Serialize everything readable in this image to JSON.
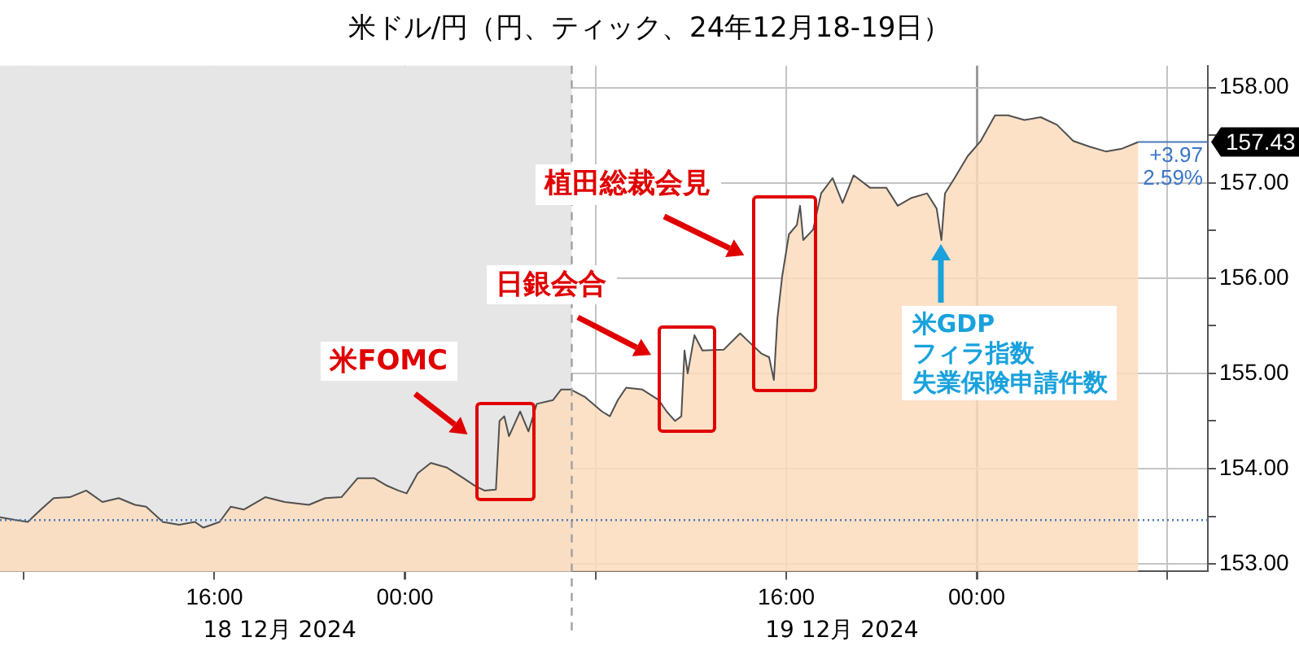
{
  "chart_data": {
    "type": "area",
    "title": "米ドル/円（円、ティック、24年12月18-19日）",
    "series": [
      {
        "color": "#fbdcbd",
        "x": [
          "2024-12-18T07:00",
          "2024-12-18T07:41",
          "2024-12-18T08:10",
          "2024-12-18T08:43",
          "2024-12-18T09:15",
          "2024-12-18T09:56",
          "2024-12-18T10:37",
          "2024-12-18T11:18",
          "2024-12-18T11:59",
          "2024-12-18T12:40",
          "2024-12-18T13:08",
          "2024-12-18T13:50",
          "2024-12-18T14:31",
          "2024-12-18T15:11",
          "2024-12-18T15:32",
          "2024-12-18T16:13",
          "2024-12-18T16:41",
          "2024-12-18T17:14",
          "2024-12-18T18:08",
          "2024-12-18T18:57",
          "2024-12-18T19:58",
          "2024-12-18T20:39",
          "2024-12-18T21:20",
          "2024-12-18T22:01",
          "2024-12-18T22:42",
          "2024-12-18T23:15",
          "2024-12-18T23:43",
          "2024-12-19T00:04",
          "2024-12-19T00:32",
          "2024-12-19T01:05",
          "2024-12-19T01:46",
          "2024-12-19T02:27",
          "2024-12-19T02:56",
          "2024-12-19T03:20",
          "2024-12-19T03:49",
          "2024-12-19T03:58",
          "2024-12-19T04:10",
          "2024-12-19T04:22",
          "2024-12-19T04:50",
          "2024-12-19T05:11",
          "2024-12-19T05:32",
          "2024-12-19T06:13",
          "2024-12-19T06:33",
          "2024-12-19T06:58",
          "2024-12-19T07:34",
          "2024-12-19T08:16",
          "2024-12-19T08:36",
          "2024-12-19T08:56",
          "2024-12-19T09:17",
          "2024-12-19T09:58",
          "2024-12-19T10:39",
          "2024-12-19T10:59",
          "2024-12-19T11:20",
          "2024-12-19T11:36",
          "2024-12-19T11:44",
          "2024-12-19T11:52",
          "2024-12-19T12:09",
          "2024-12-19T12:29",
          "2024-12-19T13:23",
          "2024-12-19T14:04",
          "2024-12-19T14:24",
          "2024-12-19T14:57",
          "2024-12-19T15:17",
          "2024-12-19T15:29",
          "2024-12-19T15:38",
          "2024-12-19T15:50",
          "2024-12-19T16:07",
          "2024-12-19T16:27",
          "2024-12-19T16:35",
          "2024-12-19T16:43",
          "2024-12-19T17:08",
          "2024-12-19T17:28",
          "2024-12-19T17:57",
          "2024-12-19T18:22",
          "2024-12-19T18:50",
          "2024-12-19T19:31",
          "2024-12-19T20:12",
          "2024-12-19T20:41",
          "2024-12-19T21:14",
          "2024-12-19T21:55",
          "2024-12-19T22:19",
          "2024-12-19T22:31",
          "2024-12-19T22:40",
          "2024-12-19T23:04",
          "2024-12-19T23:37",
          "2024-12-20T00:10",
          "2024-12-20T00:46",
          "2024-12-20T01:19",
          "2024-12-20T02:00",
          "2024-12-20T02:41",
          "2024-12-20T03:22",
          "2024-12-20T04:03",
          "2024-12-20T04:44",
          "2024-12-20T05:25",
          "2024-12-20T06:06",
          "2024-12-20T06:47"
        ],
        "values": [
          153.49,
          153.46,
          153.44,
          153.57,
          153.69,
          153.7,
          153.77,
          153.65,
          153.69,
          153.62,
          153.6,
          153.44,
          153.41,
          153.44,
          153.38,
          153.44,
          153.6,
          153.57,
          153.7,
          153.65,
          153.62,
          153.69,
          153.7,
          153.9,
          153.9,
          153.82,
          153.77,
          153.74,
          153.95,
          154.06,
          154.01,
          153.9,
          153.82,
          153.77,
          153.78,
          154.5,
          154.55,
          154.34,
          154.6,
          154.39,
          154.68,
          154.72,
          154.83,
          154.83,
          154.75,
          154.6,
          154.55,
          154.72,
          154.85,
          154.83,
          154.72,
          154.6,
          154.5,
          154.55,
          155.24,
          155.0,
          155.4,
          155.24,
          155.25,
          155.42,
          155.34,
          155.21,
          155.17,
          154.93,
          155.58,
          156.02,
          156.46,
          156.56,
          156.76,
          156.4,
          156.51,
          156.89,
          157.05,
          156.79,
          157.08,
          156.95,
          156.95,
          156.76,
          156.84,
          156.89,
          156.73,
          156.4,
          156.89,
          157.05,
          157.28,
          157.44,
          157.71,
          157.71,
          157.66,
          157.69,
          157.61,
          157.44,
          157.38,
          157.33,
          157.36,
          157.43
        ]
      }
    ],
    "xlim": [
      "2024-12-18T07:00",
      "2024-12-20T09:42"
    ],
    "xticks": [
      {
        "value": "2024-12-18T08:00",
        "label": null
      },
      {
        "value": "2024-12-18T16:00",
        "label": "16:00"
      },
      {
        "value": "2024-12-19T00:00",
        "label": "00:00"
      },
      {
        "value": "2024-12-19T08:00",
        "label": null
      },
      {
        "value": "2024-12-19T16:00",
        "label": "16:00"
      },
      {
        "value": "2024-12-20T00:00",
        "label": "00:00"
      },
      {
        "value": "2024-12-20T08:00",
        "label": null
      }
    ],
    "ylim": [
      152.92,
      158.23
    ],
    "yticks": [
      {
        "value": 153,
        "label": "153.00"
      },
      {
        "value": 153.5,
        "label": null
      },
      {
        "value": 154,
        "label": "154.00"
      },
      {
        "value": 154.5,
        "label": null
      },
      {
        "value": 155,
        "label": "155.00"
      },
      {
        "value": 155.5,
        "label": null
      },
      {
        "value": 156,
        "label": "156.00"
      },
      {
        "value": 156.5,
        "label": null
      },
      {
        "value": 157,
        "label": "157.00"
      },
      {
        "value": 157.5,
        "label": null
      },
      {
        "value": 158,
        "label": "158.00"
      }
    ],
    "bands": [
      {
        "axis": "x",
        "from": "2024-12-18T07:00",
        "to": "2024-12-19T07:00",
        "color": "#e6e6e6"
      }
    ],
    "ref_lines": [
      {
        "axis": "x",
        "value": "2024-12-19T07:00",
        "color": "#a0a0a0",
        "line_style": "dashed"
      },
      {
        "axis": "y",
        "value": 153.46,
        "color": "#4a78b8",
        "line_style": "dotted"
      }
    ],
    "annotations": [
      "米FOMC",
      "日銀会合",
      "植田総裁会見",
      "米GDPフィラ指数失業保険申請件数",
      {
        "text": "+3.97",
        "x": "2024-12-20T06:47",
        "y": 157.43
      },
      {
        "text": "2.59%",
        "x": "2024-12-20T06:47",
        "y": 157.43
      },
      "157.43",
      "18 12月 2024",
      "19 12月 2024"
    ],
    "grid": true,
    "legend": false,
    "marker": "none",
    "line_style": "solid"
  }
}
